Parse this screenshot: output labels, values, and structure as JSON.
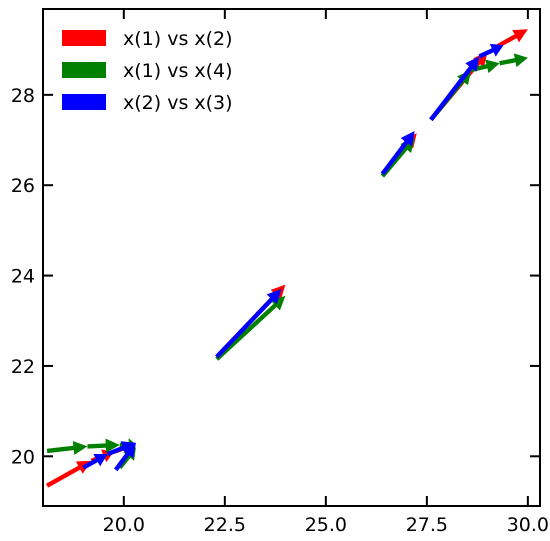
{
  "chart_data": {
    "type": "quiver",
    "title": "",
    "xlabel": "",
    "ylabel": "",
    "xlim": [
      18.0,
      30.3
    ],
    "ylim": [
      18.9,
      29.9
    ],
    "grid": false,
    "legend_position": "top-left",
    "x_ticks": [
      {
        "value": 20.0,
        "label": "20.0"
      },
      {
        "value": 22.5,
        "label": "22.5"
      },
      {
        "value": 25.0,
        "label": "25.0"
      },
      {
        "value": 27.5,
        "label": "27.5"
      },
      {
        "value": 30.0,
        "label": "30.0"
      }
    ],
    "y_ticks": [
      {
        "value": 20,
        "label": "20"
      },
      {
        "value": 22,
        "label": "22"
      },
      {
        "value": 24,
        "label": "24"
      },
      {
        "value": 26,
        "label": "26"
      },
      {
        "value": 28,
        "label": "28"
      }
    ],
    "series": [
      {
        "name": "x(1) vs x(2)",
        "color": "#ff0000",
        "segments": [
          [
            [
              18.1,
              19.35
            ],
            [
              19.2,
              19.9
            ]
          ],
          [
            [
              19.2,
              19.9
            ],
            [
              19.75,
              20.1
            ]
          ],
          [
            [
              19.75,
              20.1
            ],
            [
              20.25,
              20.25
            ]
          ],
          [
            [
              22.3,
              22.2
            ],
            [
              24.0,
              23.8
            ]
          ],
          [
            [
              26.4,
              26.25
            ],
            [
              27.25,
              27.15
            ]
          ],
          [
            [
              27.6,
              27.45
            ],
            [
              29.0,
              28.95
            ]
          ],
          [
            [
              29.2,
              29.05
            ],
            [
              30.0,
              29.45
            ]
          ]
        ]
      },
      {
        "name": "x(1) vs x(4)",
        "color": "#008000",
        "segments": [
          [
            [
              18.1,
              20.12
            ],
            [
              19.1,
              20.22
            ]
          ],
          [
            [
              19.1,
              20.22
            ],
            [
              19.9,
              20.25
            ]
          ],
          [
            [
              19.9,
              20.25
            ],
            [
              20.3,
              20.25
            ]
          ],
          [
            [
              19.9,
              19.75
            ],
            [
              20.3,
              20.2
            ]
          ],
          [
            [
              22.3,
              22.15
            ],
            [
              24.0,
              23.55
            ]
          ],
          [
            [
              26.4,
              26.2
            ],
            [
              27.2,
              27.05
            ]
          ],
          [
            [
              27.6,
              27.45
            ],
            [
              28.6,
              28.55
            ]
          ],
          [
            [
              28.6,
              28.55
            ],
            [
              29.3,
              28.7
            ]
          ],
          [
            [
              29.3,
              28.7
            ],
            [
              30.0,
              28.82
            ]
          ]
        ]
      },
      {
        "name": "x(2) vs x(3)",
        "color": "#0000ff",
        "segments": [
          [
            [
              19.0,
              19.75
            ],
            [
              19.6,
              20.05
            ]
          ],
          [
            [
              19.6,
              20.05
            ],
            [
              20.3,
              20.3
            ]
          ],
          [
            [
              19.8,
              19.7
            ],
            [
              20.3,
              20.3
            ]
          ],
          [
            [
              22.3,
              22.2
            ],
            [
              23.9,
              23.7
            ]
          ],
          [
            [
              26.4,
              26.25
            ],
            [
              27.2,
              27.2
            ]
          ],
          [
            [
              27.6,
              27.45
            ],
            [
              28.8,
              28.85
            ]
          ],
          [
            [
              28.8,
              28.85
            ],
            [
              29.4,
              29.1
            ]
          ]
        ]
      }
    ]
  }
}
